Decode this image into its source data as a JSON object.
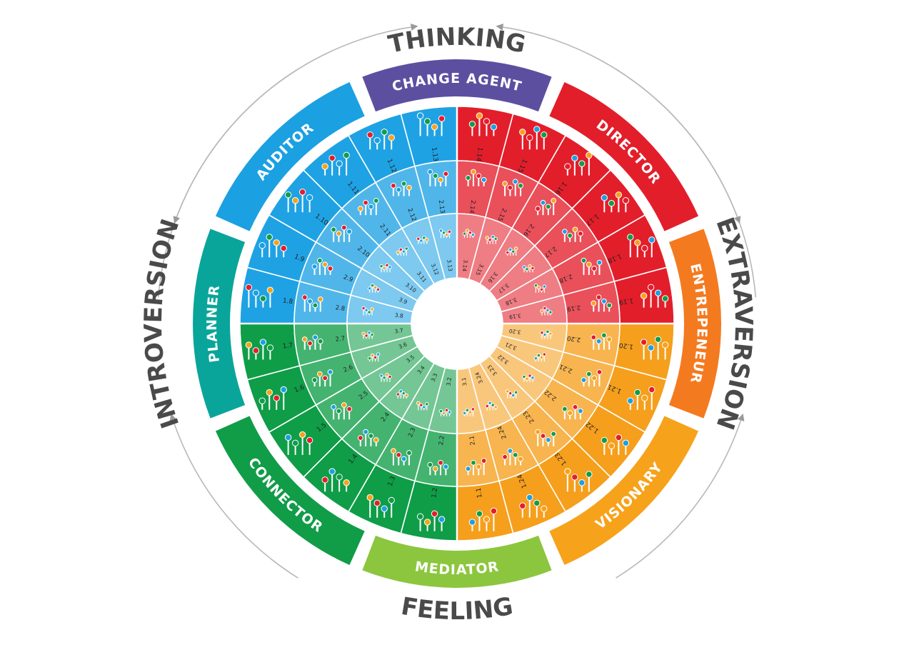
{
  "axes": {
    "top": "THINKING",
    "bottom": "FEELING",
    "left": "INTROVERSION",
    "right": "EXTRAVERSION"
  },
  "types": [
    {
      "name": "CHANGE AGENT",
      "color": "#5d4fa0"
    },
    {
      "name": "DIRECTOR",
      "color": "#e31e2b"
    },
    {
      "name": "ENTREPENEUR",
      "color": "#f47a20"
    },
    {
      "name": "VISIONARY",
      "color": "#f7a21b"
    },
    {
      "name": "MEDIATOR",
      "color": "#8cc63f"
    },
    {
      "name": "CONNECTOR",
      "color": "#119c48"
    },
    {
      "name": "PLANNER",
      "color": "#0aa59a"
    },
    {
      "name": "AUDITOR",
      "color": "#1ba0e2"
    }
  ],
  "quadrant_colors": {
    "thinking_extraversion": "#e31e2b",
    "feeling_extraversion": "#f59f1d",
    "feeling_introversion": "#0f9d48",
    "thinking_introversion": "#1ea2e4"
  },
  "marker_colors": [
    "#1ba0e2",
    "#119c48",
    "#f7a21b",
    "#e31e2b"
  ],
  "rings": [
    {
      "codes": [
        "1.1",
        "1.2",
        "1.3",
        "1.4",
        "1.5",
        "1.6",
        "1.7",
        "1.8",
        "1.9",
        "1.10",
        "1.11",
        "1.12",
        "1.13",
        "1.14",
        "1.15",
        "1.16",
        "1.17",
        "1.18",
        "1.19",
        "1.20",
        "1.21",
        "1.22",
        "1.23",
        "1.24"
      ]
    },
    {
      "codes": [
        "2.1",
        "2.2",
        "2.3",
        "2.4",
        "2.5",
        "2.6",
        "2.7",
        "2.8",
        "2.9",
        "2.10",
        "2.11",
        "2.12",
        "2.13",
        "2.14",
        "2.15",
        "2.16",
        "2.17",
        "2.18",
        "2.19",
        "2.20",
        "2.21",
        "2.22",
        "2.23",
        "2.24"
      ]
    },
    {
      "codes": [
        "3.1",
        "3.2",
        "3.3",
        "3.4",
        "3.5",
        "3.6",
        "3.7",
        "3.8",
        "3.9",
        "3.10",
        "3.11",
        "3.12",
        "3.13",
        "3.14",
        "3.15",
        "3.16",
        "3.17",
        "3.18",
        "3.19",
        "3.20",
        "3.21",
        "3.22",
        "3.23",
        "3.24"
      ]
    }
  ]
}
